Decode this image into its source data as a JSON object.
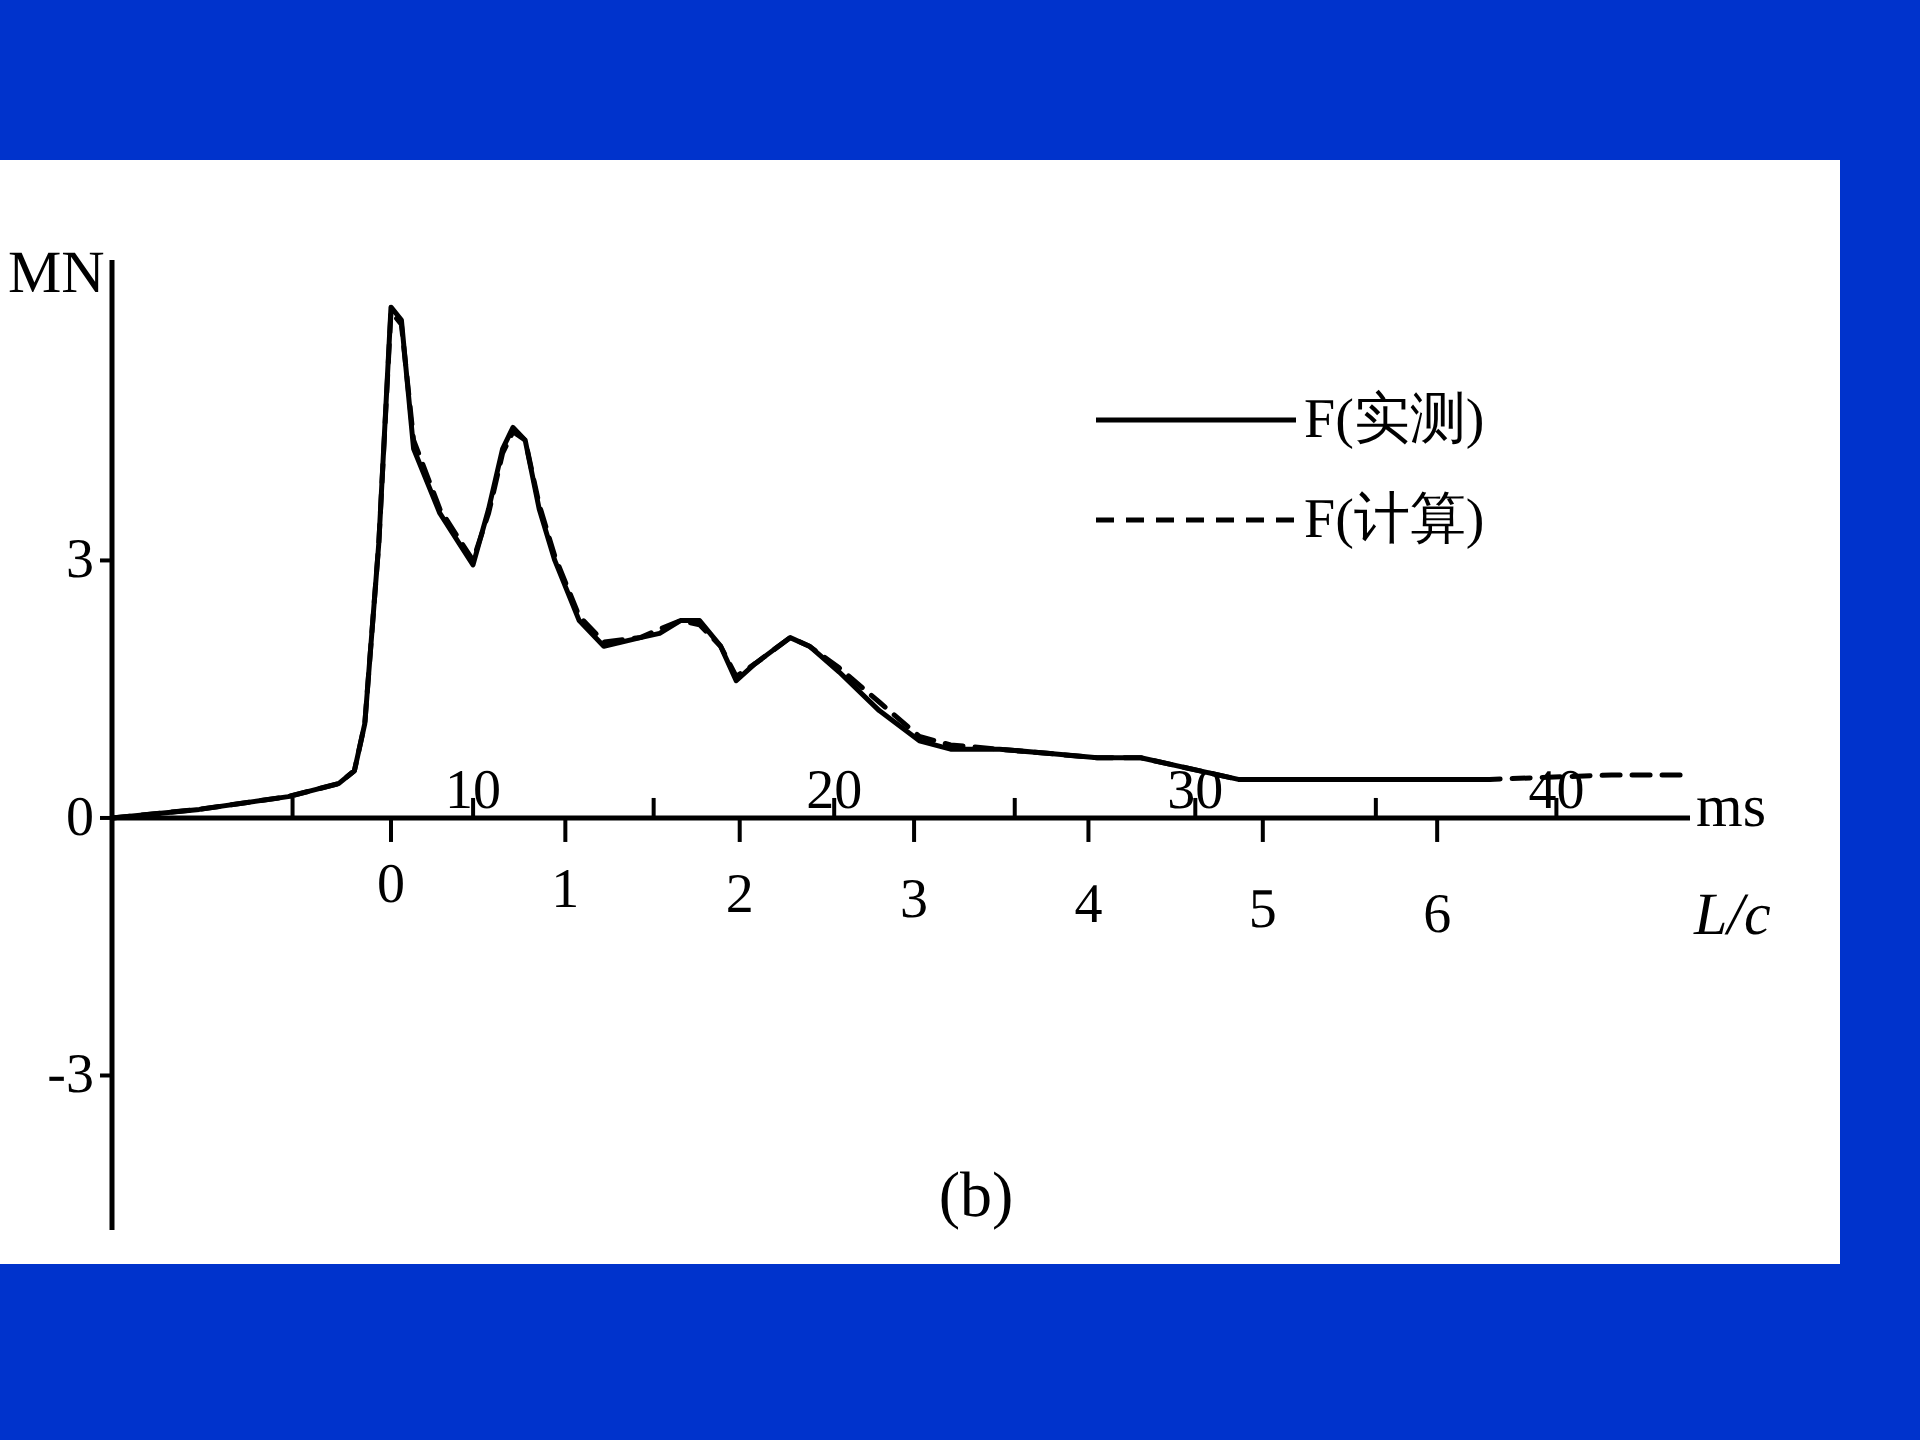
{
  "chart_data": {
    "type": "line",
    "ylabel": "MN",
    "xlabel": "L/c",
    "x2label": "ms",
    "xlim": [
      -1.6,
      7.45
    ],
    "xticks": [
      0,
      1,
      2,
      3,
      4,
      5,
      6
    ],
    "x2lim": [
      0,
      43.7
    ],
    "x2ticks": [
      {
        "value": 5,
        "label": null
      },
      10,
      {
        "value": 15,
        "label": null
      },
      20,
      {
        "value": 25,
        "label": null
      },
      30,
      {
        "value": 35,
        "label": null
      },
      40
    ],
    "ylim": [
      -4.8,
      6.5
    ],
    "yticks": [
      3,
      0,
      -3
    ],
    "grid": false,
    "legend": "top right",
    "annotations": [
      "(b)"
    ],
    "series": [
      {
        "name": "F(实测)",
        "color": "#000000",
        "line_style": "solid",
        "x": [
          -1.6,
          -1.1,
          -0.59,
          -0.3,
          -0.21,
          -0.15,
          -0.07,
          0.0,
          0.06,
          0.13,
          0.28,
          0.39,
          0.47,
          0.56,
          0.64,
          0.7,
          0.77,
          0.85,
          0.94,
          1.08,
          1.22,
          1.43,
          1.54,
          1.66,
          1.77,
          1.89,
          1.98,
          2.09,
          2.29,
          2.4,
          2.57,
          2.8,
          3.03,
          3.21,
          3.49,
          3.78,
          4.05,
          4.3,
          4.86,
          5.5,
          6.3
        ],
        "values": [
          0.0,
          0.1,
          0.25,
          0.4,
          0.55,
          1.1,
          3.2,
          5.95,
          5.8,
          4.3,
          3.55,
          3.2,
          2.95,
          3.6,
          4.3,
          4.55,
          4.4,
          3.6,
          3.0,
          2.3,
          2.0,
          2.1,
          2.15,
          2.3,
          2.3,
          2.0,
          1.6,
          1.8,
          2.1,
          2.0,
          1.7,
          1.25,
          0.9,
          0.8,
          0.8,
          0.75,
          0.7,
          0.7,
          0.45,
          0.45,
          0.45
        ]
      },
      {
        "name": "F(计算)",
        "color": "#000000",
        "line_style": "dashed",
        "x": [
          -1.6,
          -1.1,
          -0.59,
          -0.3,
          -0.21,
          -0.15,
          -0.07,
          0.0,
          0.06,
          0.13,
          0.28,
          0.39,
          0.47,
          0.56,
          0.64,
          0.7,
          0.77,
          0.85,
          0.94,
          1.08,
          1.22,
          1.43,
          1.54,
          1.66,
          1.77,
          1.89,
          1.98,
          2.09,
          2.29,
          2.4,
          2.57,
          2.8,
          3.03,
          3.21,
          3.49,
          3.78,
          4.05,
          4.3,
          4.86,
          5.5,
          6.3,
          7.0,
          7.45
        ],
        "values": [
          0.0,
          0.1,
          0.25,
          0.4,
          0.55,
          1.1,
          3.2,
          5.9,
          5.75,
          4.4,
          3.6,
          3.25,
          3.0,
          3.55,
          4.25,
          4.5,
          4.4,
          3.65,
          3.05,
          2.35,
          2.05,
          2.1,
          2.2,
          2.3,
          2.25,
          2.0,
          1.65,
          1.8,
          2.1,
          2.0,
          1.75,
          1.35,
          0.95,
          0.85,
          0.8,
          0.75,
          0.7,
          0.7,
          0.45,
          0.45,
          0.45,
          0.5,
          0.5
        ]
      }
    ]
  }
}
